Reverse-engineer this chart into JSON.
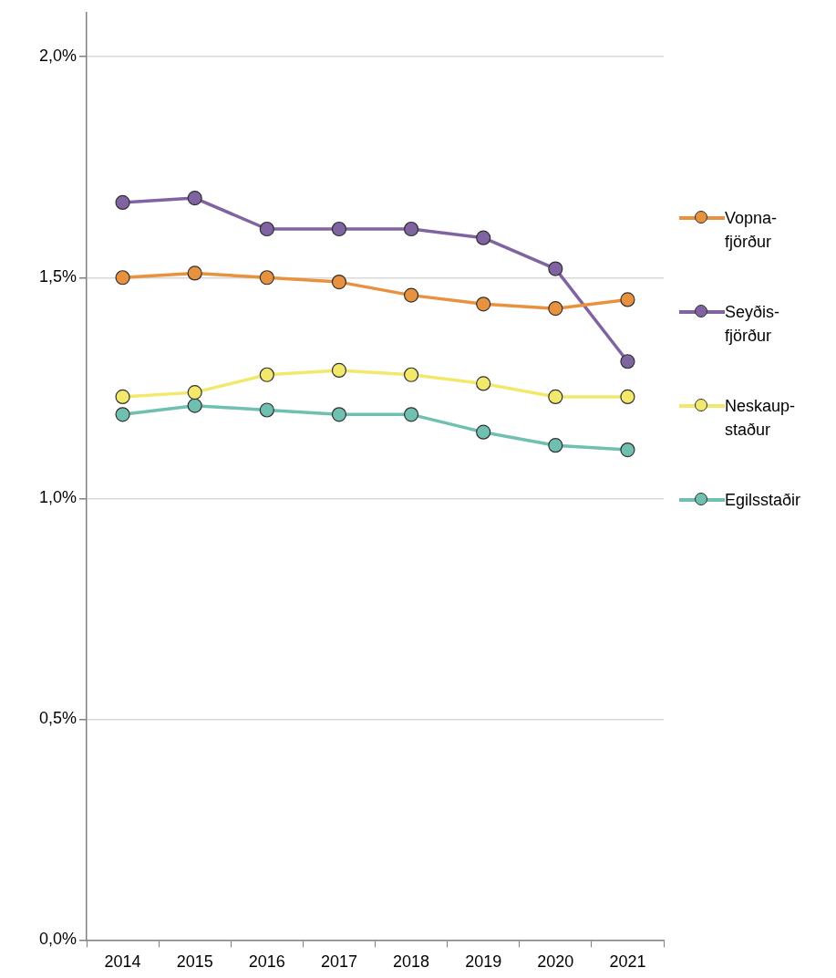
{
  "chart_data": {
    "type": "line",
    "categories": [
      "2014",
      "2015",
      "2016",
      "2017",
      "2018",
      "2019",
      "2020",
      "2021"
    ],
    "series": [
      {
        "name": "Vopna-fjörður",
        "color": "#e8913f",
        "values": [
          1.5,
          1.51,
          1.5,
          1.49,
          1.46,
          1.44,
          1.43,
          1.45
        ]
      },
      {
        "name": "Seyðis-fjörður",
        "color": "#8064a2",
        "values": [
          1.67,
          1.68,
          1.61,
          1.61,
          1.61,
          1.59,
          1.52,
          1.31
        ]
      },
      {
        "name": "Neskaup-staður",
        "color": "#f2e86c",
        "values": [
          1.23,
          1.24,
          1.28,
          1.29,
          1.28,
          1.26,
          1.23,
          1.23
        ]
      },
      {
        "name": "Egilsstaðir",
        "color": "#6fc0b0",
        "values": [
          1.19,
          1.21,
          1.2,
          1.19,
          1.19,
          1.15,
          1.12,
          1.11
        ]
      }
    ],
    "ylim": [
      0,
      2.1
    ],
    "yticks": [
      {
        "value": 0,
        "label": "0,0%"
      },
      {
        "value": 0.5,
        "label": "0,5%"
      },
      {
        "value": 1,
        "label": "1,0%"
      },
      {
        "value": 1.5,
        "label": "1,5%"
      },
      {
        "value": 2,
        "label": "2,0%"
      }
    ],
    "grid": "y",
    "legend": "right",
    "marker": "circle",
    "line_style": "solid"
  }
}
